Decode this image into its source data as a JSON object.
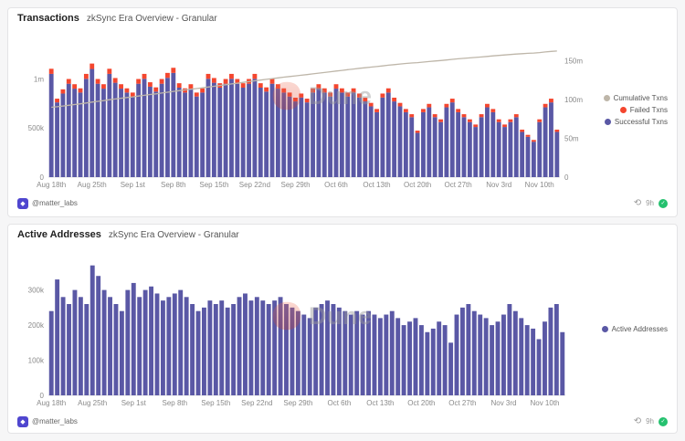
{
  "panels": [
    {
      "title": "Transactions",
      "subtitle": "zkSync Era Overview - Granular",
      "footer": {
        "author": "@matter_labs",
        "age": "9h"
      }
    },
    {
      "title": "Active Addresses",
      "subtitle": "zkSync Era Overview - Granular",
      "footer": {
        "author": "@matter_labs",
        "age": "9h"
      }
    }
  ],
  "watermark": {
    "text": "Dune"
  },
  "colors": {
    "successful": "#5a58a5",
    "failed": "#f4462e",
    "cumulative": "#beb6a9",
    "active": "#5a58a5",
    "accent_green": "#25c16f"
  },
  "chart_data": [
    {
      "type": "bar",
      "title": "Transactions",
      "subtitle": "zkSync Era Overview - Granular",
      "values_unit": "thousands",
      "x_tick_labels": [
        "Aug 18th",
        "Aug 25th",
        "Sep 1st",
        "Sep 8th",
        "Sep 15th",
        "Sep 22nd",
        "Sep 29th",
        "Oct 6th",
        "Oct 13th",
        "Oct 20th",
        "Oct 27th",
        "Nov 3rd",
        "Nov 10th"
      ],
      "x_tick_every": 7,
      "left_axis": {
        "ticks": [
          "0",
          "500k",
          "1m"
        ],
        "tick_values": [
          0,
          500,
          1000
        ],
        "max": 1300
      },
      "right_axis": {
        "ticks": [
          "0",
          "50m",
          "100m",
          "150m"
        ],
        "tick_values": [
          0,
          50000,
          100000,
          150000
        ],
        "max": 165000
      },
      "series": [
        {
          "name": "Successful Txns",
          "color": "#5a58a5",
          "values": [
            1050,
            760,
            850,
            950,
            900,
            860,
            1000,
            1100,
            950,
            900,
            1050,
            960,
            900,
            860,
            820,
            950,
            1000,
            920,
            870,
            950,
            1010,
            1060,
            910,
            860,
            900,
            820,
            860,
            1000,
            960,
            910,
            950,
            1000,
            950,
            910,
            950,
            1000,
            910,
            870,
            950,
            900,
            860,
            820,
            770,
            810,
            760,
            860,
            900,
            860,
            820,
            900,
            860,
            820,
            860,
            810,
            770,
            720,
            660,
            810,
            860,
            770,
            720,
            660,
            610,
            450,
            660,
            710,
            610,
            560,
            710,
            760,
            660,
            610,
            560,
            510,
            610,
            710,
            660,
            560,
            510,
            560,
            610,
            460,
            410,
            360,
            560,
            710,
            760,
            460
          ]
        },
        {
          "name": "Failed Txns",
          "color": "#f4462e",
          "values": [
            52,
            38,
            43,
            48,
            45,
            43,
            50,
            55,
            48,
            45,
            52,
            48,
            45,
            43,
            40,
            48,
            50,
            45,
            43,
            48,
            50,
            52,
            45,
            43,
            45,
            40,
            43,
            50,
            48,
            45,
            48,
            50,
            48,
            45,
            48,
            50,
            45,
            43,
            48,
            45,
            43,
            40,
            38,
            40,
            38,
            43,
            45,
            43,
            40,
            45,
            43,
            40,
            43,
            40,
            38,
            35,
            33,
            40,
            43,
            38,
            35,
            33,
            30,
            23,
            33,
            35,
            30,
            28,
            35,
            38,
            33,
            30,
            28,
            25,
            30,
            35,
            33,
            28,
            25,
            28,
            30,
            23,
            20,
            18,
            28,
            35,
            38,
            23
          ]
        }
      ],
      "line": {
        "name": "Cumulative Txns",
        "color": "#beb6a9",
        "axis": "right",
        "start_value": 89000
      },
      "legend": [
        {
          "label": "Cumulative Txns",
          "color": "#beb6a9"
        },
        {
          "label": "Failed Txns",
          "color": "#f4462e"
        },
        {
          "label": "Successful Txns",
          "color": "#5a58a5"
        }
      ]
    },
    {
      "type": "bar",
      "title": "Active Addresses",
      "subtitle": "zkSync Era Overview - Granular",
      "values_unit": "thousands",
      "x_tick_labels": [
        "Aug 18th",
        "Aug 25th",
        "Sep 1st",
        "Sep 8th",
        "Sep 15th",
        "Sep 22nd",
        "Sep 29th",
        "Oct 6th",
        "Oct 13th",
        "Oct 20th",
        "Oct 27th",
        "Nov 3rd",
        "Nov 10th"
      ],
      "x_tick_every": 7,
      "left_axis": {
        "ticks": [
          "0",
          "100k",
          "200k",
          "300k"
        ],
        "tick_values": [
          0,
          100,
          200,
          300
        ],
        "max": 390
      },
      "series": [
        {
          "name": "Active Addresses",
          "color": "#5a58a5",
          "values": [
            240,
            330,
            280,
            260,
            300,
            280,
            260,
            370,
            340,
            300,
            280,
            260,
            240,
            300,
            320,
            280,
            300,
            310,
            290,
            270,
            280,
            290,
            300,
            280,
            260,
            240,
            250,
            270,
            260,
            270,
            250,
            260,
            280,
            290,
            270,
            280,
            270,
            260,
            270,
            280,
            260,
            250,
            240,
            230,
            220,
            250,
            260,
            270,
            260,
            250,
            240,
            230,
            240,
            230,
            240,
            230,
            220,
            230,
            240,
            220,
            200,
            210,
            220,
            200,
            180,
            190,
            210,
            200,
            150,
            230,
            250,
            260,
            240,
            230,
            220,
            200,
            210,
            230,
            260,
            240,
            220,
            200,
            190,
            160,
            210,
            250,
            260,
            180
          ]
        }
      ],
      "legend": [
        {
          "label": "Active Addresses",
          "color": "#5a58a5"
        }
      ]
    }
  ]
}
